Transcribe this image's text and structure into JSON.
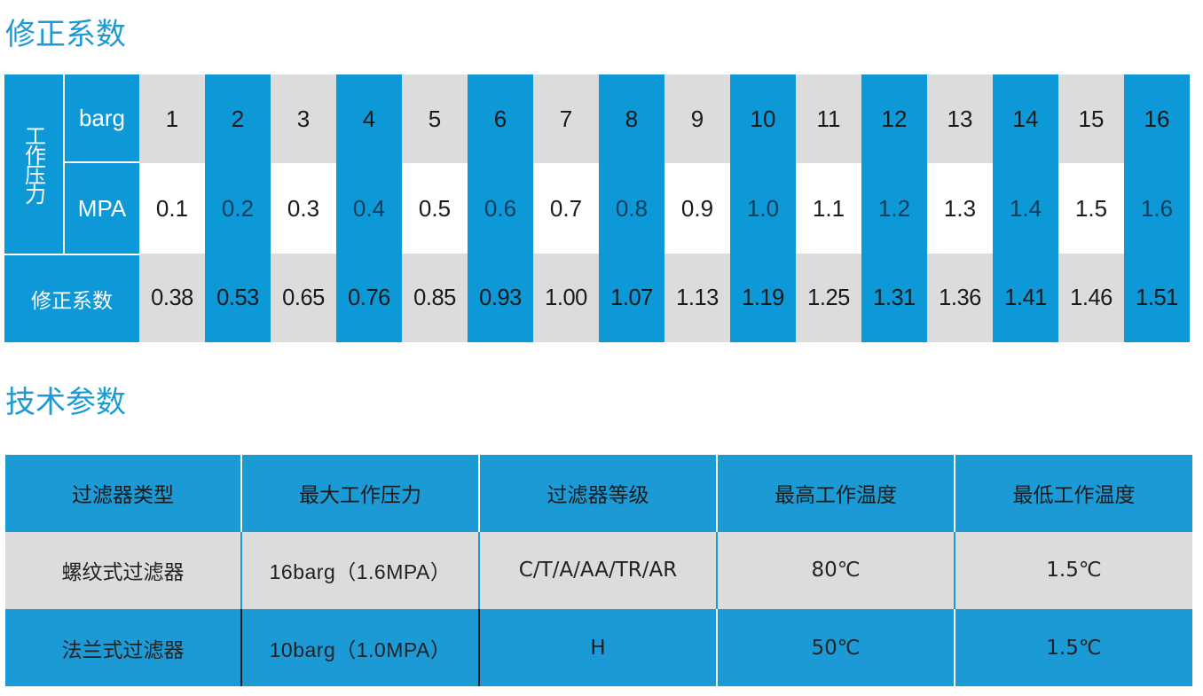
{
  "correction": {
    "title": "修正系数",
    "pressure_label": "工作压力",
    "unit_barg": "barg",
    "unit_mpa": "MPA",
    "factor_label": "修正系数",
    "barg": [
      "1",
      "2",
      "3",
      "4",
      "5",
      "6",
      "7",
      "8",
      "9",
      "10",
      "11",
      "12",
      "13",
      "14",
      "15",
      "16"
    ],
    "mpa": [
      "0.1",
      "0.2",
      "0.3",
      "0.4",
      "0.5",
      "0.6",
      "0.7",
      "0.8",
      "0.9",
      "1.0",
      "1.1",
      "1.2",
      "1.3",
      "1.4",
      "1.5",
      "1.6"
    ],
    "factors": [
      "0.38",
      "0.53",
      "0.65",
      "0.76",
      "0.85",
      "0.93",
      "1.00",
      "1.07",
      "1.13",
      "1.19",
      "1.25",
      "1.31",
      "1.36",
      "1.41",
      "1.46",
      "1.51"
    ],
    "colors": {
      "blue": "#0d98d8",
      "gray": "#dcdcdc",
      "white": "#ffffff"
    }
  },
  "technical": {
    "title": "技术参数",
    "headers": [
      "过滤器类型",
      "最大工作压力",
      "过滤器等级",
      "最高工作温度",
      "最低工作温度"
    ],
    "rows": [
      [
        "螺纹式过滤器",
        "16barg（1.6MPA）",
        "C/T/A/AA/TR/AR",
        "80℃",
        "1.5℃"
      ],
      [
        "法兰式过滤器",
        "10barg（1.0MPA）",
        "H",
        "50℃",
        "1.5℃"
      ]
    ]
  }
}
